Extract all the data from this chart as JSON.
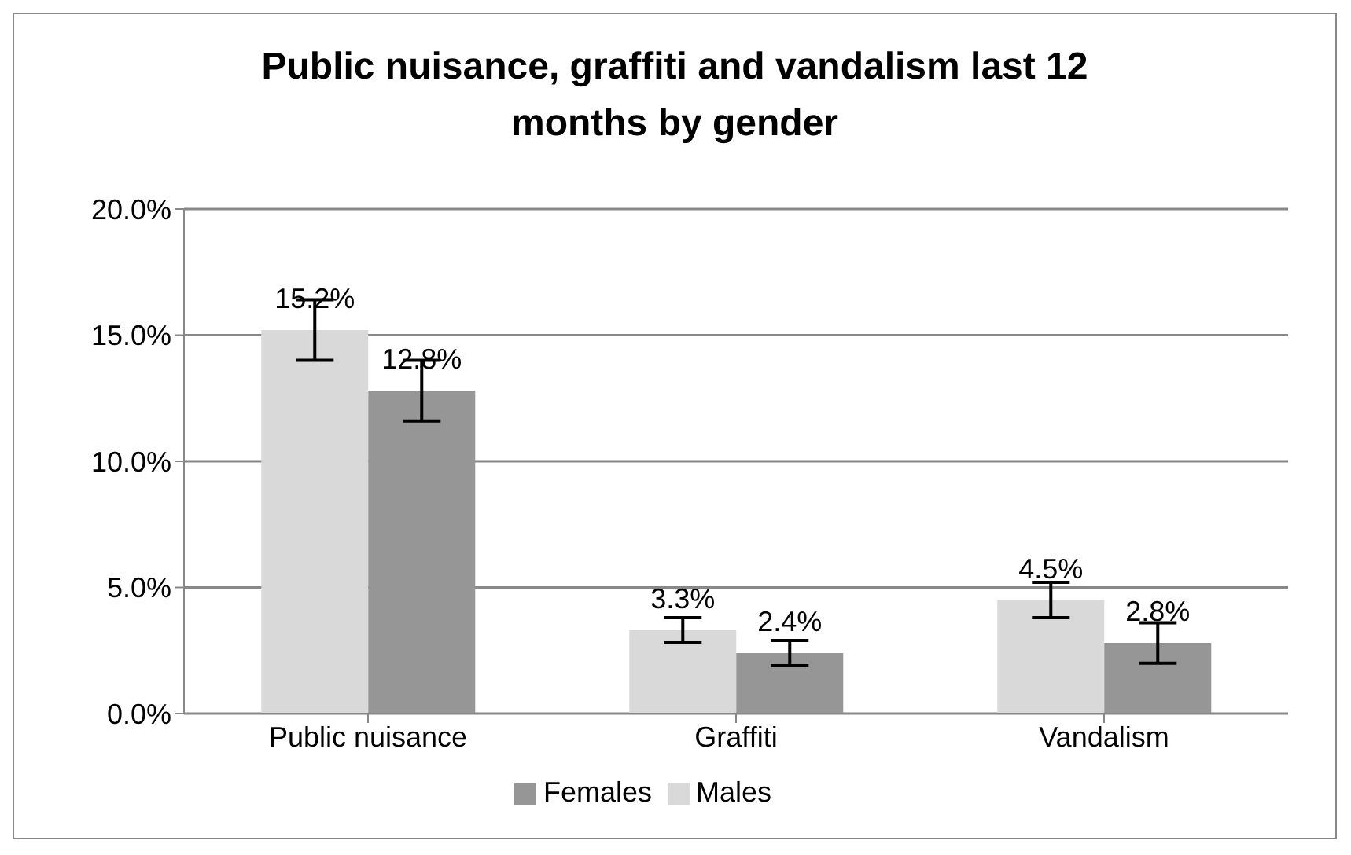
{
  "chart_data": {
    "type": "bar",
    "title": "Public nuisance, graffiti and vandalism last 12 months by gender",
    "categories": [
      "Public nuisance",
      "Graffiti",
      "Vandalism"
    ],
    "series": [
      {
        "name": "Males",
        "color": "#d9d9d9",
        "values": [
          15.2,
          3.3,
          4.5
        ],
        "errors": [
          1.2,
          0.5,
          0.7
        ],
        "value_labels": [
          "15.2%",
          "3.3%",
          "4.5%"
        ]
      },
      {
        "name": "Females",
        "color": "#969696",
        "values": [
          12.8,
          2.4,
          2.8
        ],
        "errors": [
          1.2,
          0.5,
          0.8
        ],
        "value_labels": [
          "12.8%",
          "2.4%",
          "2.8%"
        ]
      }
    ],
    "ylim": [
      0,
      20
    ],
    "yticks": [
      {
        "value": 0,
        "label": "0.0%"
      },
      {
        "value": 5,
        "label": "5.0%"
      },
      {
        "value": 10,
        "label": "10.0%"
      },
      {
        "value": 15,
        "label": "15.0%"
      },
      {
        "value": 20,
        "label": "20.0%"
      }
    ],
    "grid": "y",
    "legend": "bottom"
  }
}
